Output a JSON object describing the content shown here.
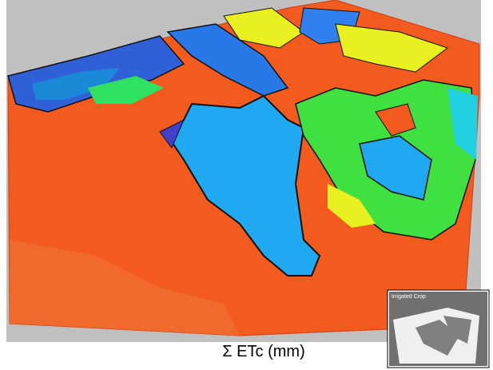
{
  "caption": "Σ ETc (mm)",
  "inset": {
    "title": "Irrigated Crop"
  }
}
